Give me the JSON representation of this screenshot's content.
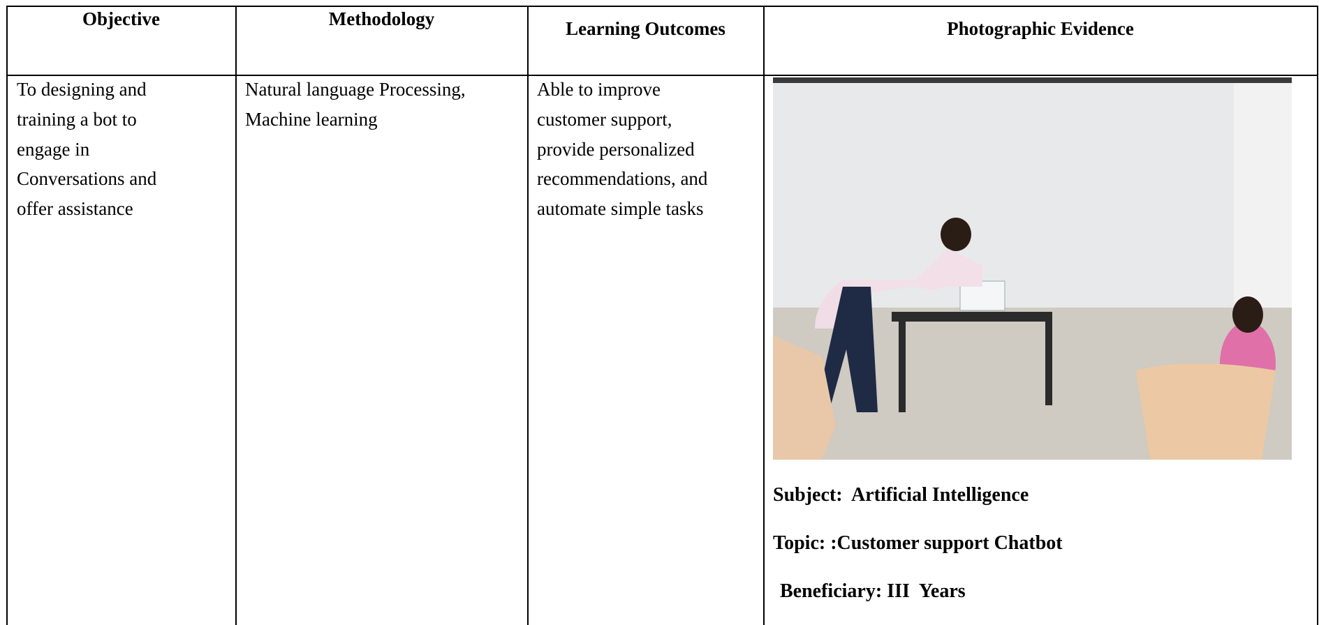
{
  "table": {
    "headers": [
      "Objective",
      "Methodology",
      "Learning Outcomes",
      "Photographic Evidence"
    ],
    "objective": [
      "To designing and",
      "training a bot to",
      "engage in",
      "Conversations and",
      "offer assistance"
    ],
    "methodology": [
      "Natural language Processing,",
      "Machine learning"
    ],
    "learning_outcomes": [
      "Able to improve",
      "customer support,",
      "provide personalized",
      "recommendations, and",
      "automate simple tasks"
    ],
    "evidence": {
      "subject": "Subject:  Artificial Intelligence",
      "topic": "Topic: :Customer support Chatbot",
      "beneficiary": "Beneficiary: III  Years"
    }
  }
}
